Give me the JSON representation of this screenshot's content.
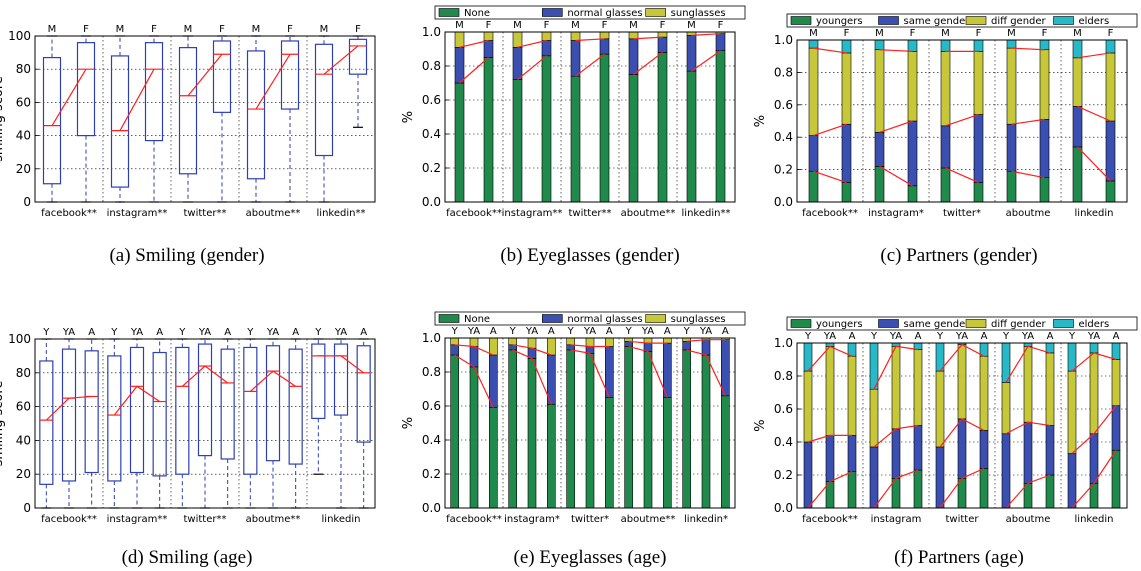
{
  "colors": {
    "green": "#1f8a4c",
    "blue": "#3a4fb0",
    "olive": "#c7c73a",
    "cyan": "#28b9c9",
    "red": "#ff2020",
    "box": "#2d3fb3"
  },
  "chart_data": [
    {
      "id": "a",
      "type": "box",
      "caption": "(a) Smiling (gender)",
      "ylabel": "smiling score",
      "ylim": [
        0,
        100
      ],
      "yticks": [
        0,
        20,
        40,
        60,
        80,
        100
      ],
      "sites": [
        "facebook**",
        "instagram**",
        "twitter**",
        "aboutme**",
        "linkedin**"
      ],
      "groups": [
        "M",
        "F"
      ],
      "boxes": [
        [
          {
            "q1": 11,
            "med": 46,
            "q3": 87,
            "lo": 0,
            "hi": 100
          },
          {
            "q1": 40,
            "med": 80,
            "q3": 96,
            "lo": 0,
            "hi": 100
          }
        ],
        [
          {
            "q1": 9,
            "med": 43,
            "q3": 88,
            "lo": 0,
            "hi": 100
          },
          {
            "q1": 37,
            "med": 80,
            "q3": 96,
            "lo": 0,
            "hi": 100
          }
        ],
        [
          {
            "q1": 17,
            "med": 64,
            "q3": 93,
            "lo": 0,
            "hi": 100
          },
          {
            "q1": 54,
            "med": 89,
            "q3": 97,
            "lo": 0,
            "hi": 100
          }
        ],
        [
          {
            "q1": 14,
            "med": 56,
            "q3": 91,
            "lo": 0,
            "hi": 100
          },
          {
            "q1": 56,
            "med": 89,
            "q3": 97,
            "lo": 0,
            "hi": 100
          }
        ],
        [
          {
            "q1": 28,
            "med": 77,
            "q3": 95,
            "lo": 0,
            "hi": 100
          },
          {
            "q1": 77,
            "med": 94,
            "q3": 98,
            "lo": 45,
            "hi": 100
          }
        ]
      ]
    },
    {
      "id": "b",
      "type": "stacked-bar",
      "caption": "(b) Eyeglasses (gender)",
      "ylabel": "%",
      "ylim": [
        0,
        1
      ],
      "yticks": [
        "0.0",
        "0.2",
        "0.4",
        "0.6",
        "0.8",
        "1.0"
      ],
      "legend": [
        "None",
        "normal glasses",
        "sunglasses"
      ],
      "legend_colors": [
        "green",
        "blue",
        "olive"
      ],
      "sites": [
        "facebook**",
        "instagram**",
        "twitter**",
        "aboutme**",
        "linkedin**"
      ],
      "groups": [
        "M",
        "F"
      ],
      "values": [
        [
          [
            0.7,
            0.21,
            0.09
          ],
          [
            0.85,
            0.1,
            0.05
          ]
        ],
        [
          [
            0.72,
            0.19,
            0.09
          ],
          [
            0.86,
            0.09,
            0.05
          ]
        ],
        [
          [
            0.74,
            0.21,
            0.05
          ],
          [
            0.87,
            0.09,
            0.04
          ]
        ],
        [
          [
            0.75,
            0.21,
            0.04
          ],
          [
            0.88,
            0.09,
            0.03
          ]
        ],
        [
          [
            0.77,
            0.21,
            0.02
          ],
          [
            0.89,
            0.1,
            0.01
          ]
        ]
      ]
    },
    {
      "id": "c",
      "type": "stacked-bar",
      "caption": "(c) Partners (gender)",
      "ylabel": "%",
      "ylim": [
        0,
        1
      ],
      "yticks": [
        "0.0",
        "0.2",
        "0.4",
        "0.6",
        "0.8",
        "1.0"
      ],
      "legend": [
        "youngers",
        "same gender",
        "diff gender",
        "elders"
      ],
      "legend_colors": [
        "green",
        "blue",
        "olive",
        "cyan"
      ],
      "sites": [
        "facebook**",
        "instagram*",
        "twitter*",
        "aboutme",
        "linkedin"
      ],
      "groups": [
        "M",
        "F"
      ],
      "values": [
        [
          [
            0.19,
            0.22,
            0.54,
            0.05
          ],
          [
            0.12,
            0.36,
            0.44,
            0.08
          ]
        ],
        [
          [
            0.22,
            0.21,
            0.51,
            0.06
          ],
          [
            0.1,
            0.4,
            0.43,
            0.07
          ]
        ],
        [
          [
            0.21,
            0.26,
            0.46,
            0.07
          ],
          [
            0.12,
            0.42,
            0.39,
            0.07
          ]
        ],
        [
          [
            0.19,
            0.29,
            0.47,
            0.05
          ],
          [
            0.15,
            0.36,
            0.43,
            0.06
          ]
        ],
        [
          [
            0.34,
            0.25,
            0.3,
            0.11
          ],
          [
            0.13,
            0.37,
            0.42,
            0.08
          ]
        ]
      ]
    },
    {
      "id": "d",
      "type": "box",
      "caption": "(d) Smiling (age)",
      "ylabel": "smiling score",
      "ylim": [
        0,
        100
      ],
      "yticks": [
        0,
        20,
        40,
        60,
        80,
        100
      ],
      "sites": [
        "facebook**",
        "instagram**",
        "twitter**",
        "aboutme**",
        "linkedin"
      ],
      "groups": [
        "Y",
        "YA",
        "A"
      ],
      "boxes": [
        [
          {
            "q1": 14,
            "med": 52,
            "q3": 87,
            "lo": 0,
            "hi": 100
          },
          {
            "q1": 16,
            "med": 65,
            "q3": 94,
            "lo": 0,
            "hi": 100
          },
          {
            "q1": 21,
            "med": 66,
            "q3": 93,
            "lo": 0,
            "hi": 100
          }
        ],
        [
          {
            "q1": 16,
            "med": 55,
            "q3": 90,
            "lo": 0,
            "hi": 100
          },
          {
            "q1": 21,
            "med": 72,
            "q3": 95,
            "lo": 0,
            "hi": 100
          },
          {
            "q1": 19,
            "med": 63,
            "q3": 92,
            "lo": 0,
            "hi": 100
          }
        ],
        [
          {
            "q1": 20,
            "med": 72,
            "q3": 95,
            "lo": 0,
            "hi": 100
          },
          {
            "q1": 31,
            "med": 84,
            "q3": 97,
            "lo": 0,
            "hi": 100
          },
          {
            "q1": 29,
            "med": 74,
            "q3": 94,
            "lo": 0,
            "hi": 100
          }
        ],
        [
          {
            "q1": 20,
            "med": 69,
            "q3": 95,
            "lo": 0,
            "hi": 100
          },
          {
            "q1": 28,
            "med": 81,
            "q3": 96,
            "lo": 0,
            "hi": 100
          },
          {
            "q1": 26,
            "med": 72,
            "q3": 94,
            "lo": 0,
            "hi": 100
          }
        ],
        [
          {
            "q1": 53,
            "med": 90,
            "q3": 97,
            "lo": 20,
            "hi": 100
          },
          {
            "q1": 55,
            "med": 90,
            "q3": 97,
            "lo": 0,
            "hi": 100
          },
          {
            "q1": 39,
            "med": 80,
            "q3": 96,
            "lo": 0,
            "hi": 100
          }
        ]
      ]
    },
    {
      "id": "e",
      "type": "stacked-bar",
      "caption": "(e) Eyeglasses (age)",
      "ylabel": "%",
      "ylim": [
        0,
        1
      ],
      "yticks": [
        "0.0",
        "0.2",
        "0.4",
        "0.6",
        "0.8",
        "1.0"
      ],
      "legend": [
        "None",
        "normal glasses",
        "sunglasses"
      ],
      "legend_colors": [
        "green",
        "blue",
        "olive"
      ],
      "sites": [
        "facebook**",
        "instagram*",
        "twitter*",
        "aboutme**",
        "linkedin*"
      ],
      "groups": [
        "Y",
        "YA",
        "A"
      ],
      "values": [
        [
          [
            0.9,
            0.06,
            0.04
          ],
          [
            0.83,
            0.12,
            0.05
          ],
          [
            0.59,
            0.31,
            0.1
          ]
        ],
        [
          [
            0.93,
            0.03,
            0.04
          ],
          [
            0.88,
            0.06,
            0.06
          ],
          [
            0.61,
            0.29,
            0.1
          ]
        ],
        [
          [
            0.93,
            0.03,
            0.04
          ],
          [
            0.91,
            0.04,
            0.05
          ],
          [
            0.65,
            0.3,
            0.05
          ]
        ],
        [
          [
            0.95,
            0.03,
            0.02
          ],
          [
            0.92,
            0.05,
            0.03
          ],
          [
            0.65,
            0.32,
            0.03
          ]
        ],
        [
          [
            0.93,
            0.05,
            0.02
          ],
          [
            0.9,
            0.09,
            0.01
          ],
          [
            0.66,
            0.33,
            0.01
          ]
        ]
      ]
    },
    {
      "id": "f",
      "type": "stacked-bar",
      "caption": "(f) Partners (age)",
      "ylabel": "%",
      "ylim": [
        0,
        1
      ],
      "yticks": [
        "0.0",
        "0.2",
        "0.4",
        "0.6",
        "0.8",
        "1.0"
      ],
      "legend": [
        "youngers",
        "same gender",
        "diff gender",
        "elders"
      ],
      "legend_colors": [
        "green",
        "blue",
        "olive",
        "cyan"
      ],
      "sites": [
        "facebook**",
        "instagram",
        "twitter",
        "aboutme",
        "linkedin"
      ],
      "groups": [
        "Y",
        "YA",
        "A"
      ],
      "values": [
        [
          [
            0.0,
            0.4,
            0.43,
            0.17
          ],
          [
            0.16,
            0.28,
            0.54,
            0.02
          ],
          [
            0.22,
            0.22,
            0.48,
            0.08
          ]
        ],
        [
          [
            0.0,
            0.37,
            0.35,
            0.28
          ],
          [
            0.18,
            0.3,
            0.5,
            0.02
          ],
          [
            0.23,
            0.27,
            0.46,
            0.04
          ]
        ],
        [
          [
            0.0,
            0.37,
            0.46,
            0.17
          ],
          [
            0.18,
            0.36,
            0.45,
            0.01
          ],
          [
            0.24,
            0.23,
            0.45,
            0.08
          ]
        ],
        [
          [
            0.0,
            0.45,
            0.31,
            0.24
          ],
          [
            0.15,
            0.37,
            0.46,
            0.02
          ],
          [
            0.2,
            0.3,
            0.44,
            0.06
          ]
        ],
        [
          [
            0.0,
            0.33,
            0.5,
            0.17
          ],
          [
            0.15,
            0.3,
            0.49,
            0.06
          ],
          [
            0.35,
            0.27,
            0.28,
            0.1
          ]
        ]
      ]
    }
  ]
}
